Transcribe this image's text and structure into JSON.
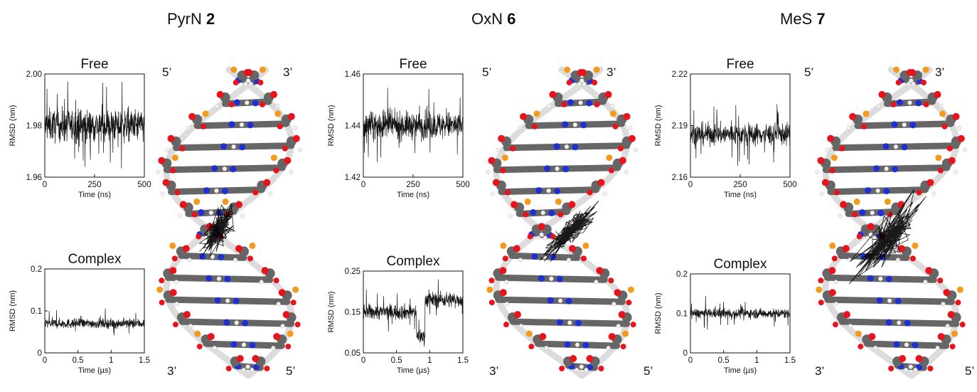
{
  "panels": [
    {
      "title": "PyrN",
      "compound_number": "2",
      "strand_labels": {
        "top_left": "5’",
        "top_right": "3’",
        "bottom_left": "3’",
        "bottom_right": "5’"
      }
    },
    {
      "title": "OxN",
      "compound_number": "6",
      "strand_labels": {
        "top_left": "5’",
        "top_right": "3’",
        "bottom_left": "3’",
        "bottom_right": "5’"
      }
    },
    {
      "title": "MeS",
      "compound_number": "7",
      "strand_labels": {
        "top_left": "5’",
        "top_right": "3’",
        "bottom_left": "3’",
        "bottom_right": "5’"
      }
    }
  ],
  "colors": {
    "trace": "#111111",
    "carbon": "#666666",
    "oxygen": "#e8131b",
    "nitrogen": "#1f2fd6",
    "phosphorus": "#f39a1c",
    "hydrogen": "#f2f2f2",
    "backbone": "#dcdcdc"
  },
  "chart_data": [
    {
      "type": "line",
      "panel": "PyrN 2",
      "title": "Free",
      "xlabel": "Time (ns)",
      "ylabel": "RMSD (nm)",
      "xlim": [
        0,
        500
      ],
      "ylim": [
        1.96,
        2.0
      ],
      "xticks": [
        0,
        250,
        500
      ],
      "yticks": [
        1.96,
        1.98,
        2.0
      ],
      "xtick_labels": [
        "0",
        "250",
        "500"
      ],
      "ytick_labels": [
        "1.96",
        "1.98",
        "2.00"
      ],
      "series": [
        {
          "mean": 1.98,
          "noise": 0.006,
          "segments": []
        }
      ]
    },
    {
      "type": "line",
      "panel": "PyrN 2",
      "title": "Complex",
      "xlabel": "Time (µs)",
      "ylabel": "RMSD (nm)",
      "xlim": [
        0,
        1.5
      ],
      "ylim": [
        0,
        0.2
      ],
      "xticks": [
        0,
        0.5,
        1,
        1.5
      ],
      "yticks": [
        0,
        0.1,
        0.2
      ],
      "xtick_labels": [
        "0",
        "0.5",
        "1",
        "1.5"
      ],
      "ytick_labels": [
        "0",
        "0.1",
        "0.2"
      ],
      "series": [
        {
          "mean": 0.07,
          "noise": 0.011,
          "segments": []
        }
      ]
    },
    {
      "type": "line",
      "panel": "OxN 6",
      "title": "Free",
      "xlabel": "Time (ns)",
      "ylabel": "RMSD (nm)",
      "xlim": [
        0,
        500
      ],
      "ylim": [
        1.42,
        1.46
      ],
      "xticks": [
        0,
        250,
        500
      ],
      "yticks": [
        1.42,
        1.44,
        1.46
      ],
      "xtick_labels": [
        "0",
        "250",
        "500"
      ],
      "ytick_labels": [
        "1.42",
        "1.44",
        "1.46"
      ],
      "series": [
        {
          "mean": 1.44,
          "noise": 0.005,
          "segments": []
        }
      ]
    },
    {
      "type": "line",
      "panel": "OxN 6",
      "title": "Complex",
      "xlabel": "Time (µs)",
      "ylabel": "RMSD (nm)",
      "xlim": [
        0,
        1.5
      ],
      "ylim": [
        0.05,
        0.25
      ],
      "xticks": [
        0,
        0.5,
        1,
        1.5
      ],
      "yticks": [
        0.05,
        0.15,
        0.25
      ],
      "xtick_labels": [
        "0",
        "0.5",
        "1",
        "1.5"
      ],
      "ytick_labels": [
        "0.05",
        "0.15",
        "0.25"
      ],
      "series": [
        {
          "mean": 0.15,
          "noise": 0.018,
          "segments": [
            {
              "from": 0,
              "to": 0.8,
              "mean": 0.15
            },
            {
              "from": 0.8,
              "to": 0.93,
              "mean": 0.09
            },
            {
              "from": 0.93,
              "to": 1.5,
              "mean": 0.18
            }
          ]
        }
      ]
    },
    {
      "type": "line",
      "panel": "MeS 7",
      "title": "Free",
      "xlabel": "Time (ns)",
      "ylabel": "RMSD (nm)",
      "xlim": [
        0,
        500
      ],
      "ylim": [
        2.16,
        2.22
      ],
      "xticks": [
        0,
        250,
        500
      ],
      "yticks": [
        2.16,
        2.19,
        2.22
      ],
      "xtick_labels": [
        "0",
        "250",
        "500"
      ],
      "ytick_labels": [
        "2.16",
        "2.19",
        "2.22"
      ],
      "series": [
        {
          "mean": 2.185,
          "noise": 0.006,
          "segments": []
        }
      ]
    },
    {
      "type": "line",
      "panel": "MeS 7",
      "title": "Complex",
      "xlabel": "Time (µs)",
      "ylabel": "RMSD (nm)",
      "xlim": [
        0,
        1.5
      ],
      "ylim": [
        0,
        0.2
      ],
      "xticks": [
        0,
        0.5,
        1,
        1.5
      ],
      "yticks": [
        0,
        0.1,
        0.2
      ],
      "xtick_labels": [
        "0",
        "0.5",
        "1",
        "1.5"
      ],
      "ytick_labels": [
        "0",
        "0.1",
        "0.2"
      ],
      "series": [
        {
          "mean": 0.1,
          "noise": 0.012,
          "segments": []
        }
      ]
    }
  ]
}
